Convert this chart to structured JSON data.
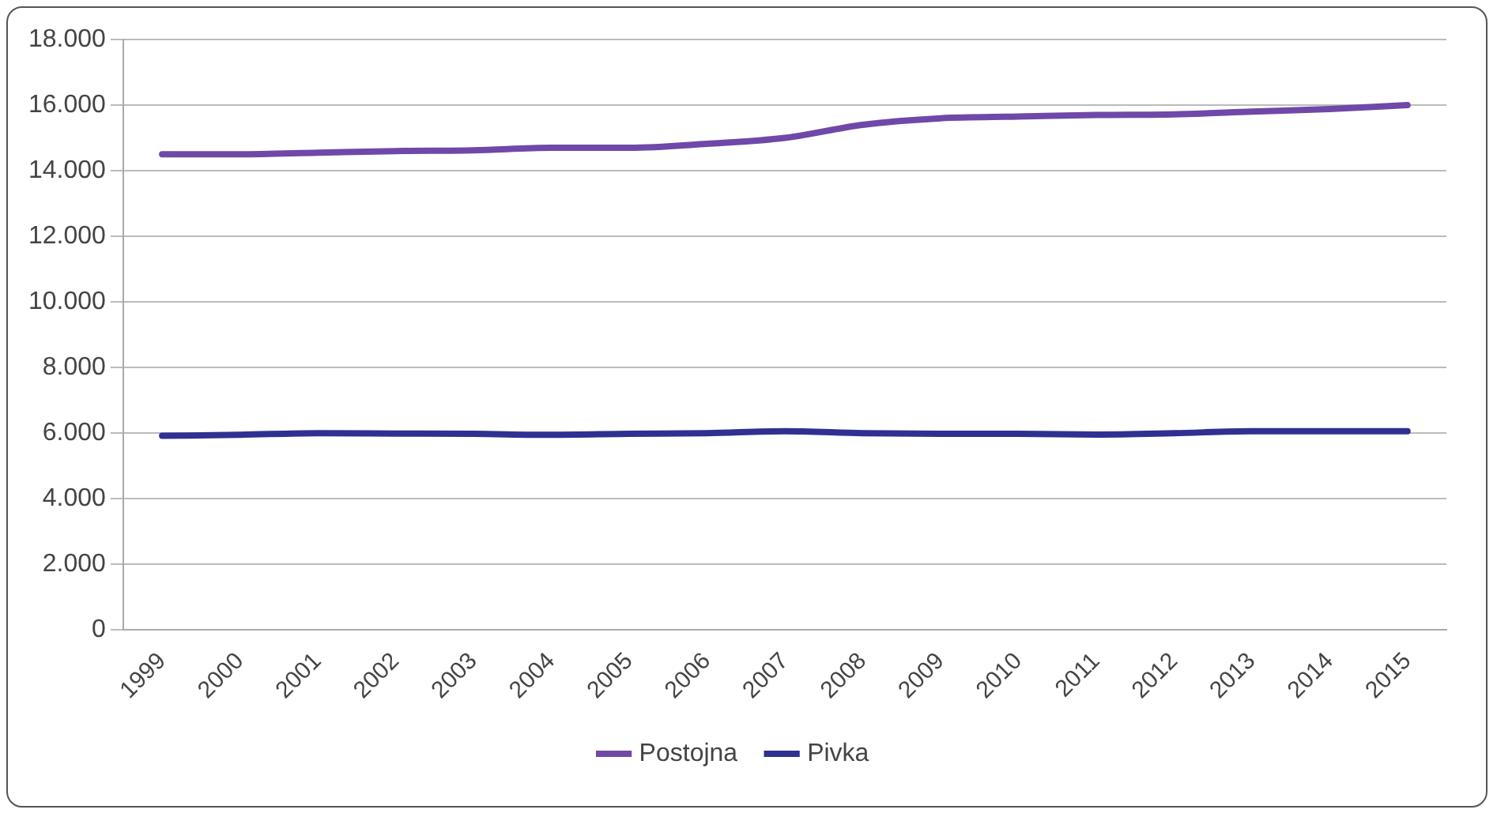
{
  "chart_data": {
    "type": "line",
    "categories": [
      "1999",
      "2000",
      "2001",
      "2002",
      "2003",
      "2004",
      "2005",
      "2006",
      "2007",
      "2008",
      "2009",
      "2010",
      "2011",
      "2012",
      "2013",
      "2014",
      "2015"
    ],
    "series": [
      {
        "name": "Postojna",
        "color": "#7048a8",
        "values": [
          14500,
          14500,
          14550,
          14600,
          14620,
          14700,
          14700,
          14820,
          15000,
          15400,
          15600,
          15650,
          15700,
          15720,
          15800,
          15880,
          16000
        ]
      },
      {
        "name": "Pivka",
        "color": "#2e3192",
        "values": [
          5920,
          5950,
          6000,
          5990,
          5980,
          5950,
          5980,
          6000,
          6060,
          6000,
          5980,
          5980,
          5960,
          6000,
          6060,
          6060,
          6060
        ]
      }
    ],
    "ylim": [
      0,
      18000
    ],
    "yticks": [
      {
        "value": 0,
        "label": "0"
      },
      {
        "value": 2000,
        "label": "2.000"
      },
      {
        "value": 4000,
        "label": "4.000"
      },
      {
        "value": 6000,
        "label": "6.000"
      },
      {
        "value": 8000,
        "label": "8.000"
      },
      {
        "value": 10000,
        "label": "10.000"
      },
      {
        "value": 12000,
        "label": "12.000"
      },
      {
        "value": 14000,
        "label": "14.000"
      },
      {
        "value": 16000,
        "label": "16.000"
      },
      {
        "value": 18000,
        "label": "18.000"
      }
    ],
    "grid": "y",
    "legend": "bottom",
    "marker": "none",
    "line_style": "solid"
  }
}
